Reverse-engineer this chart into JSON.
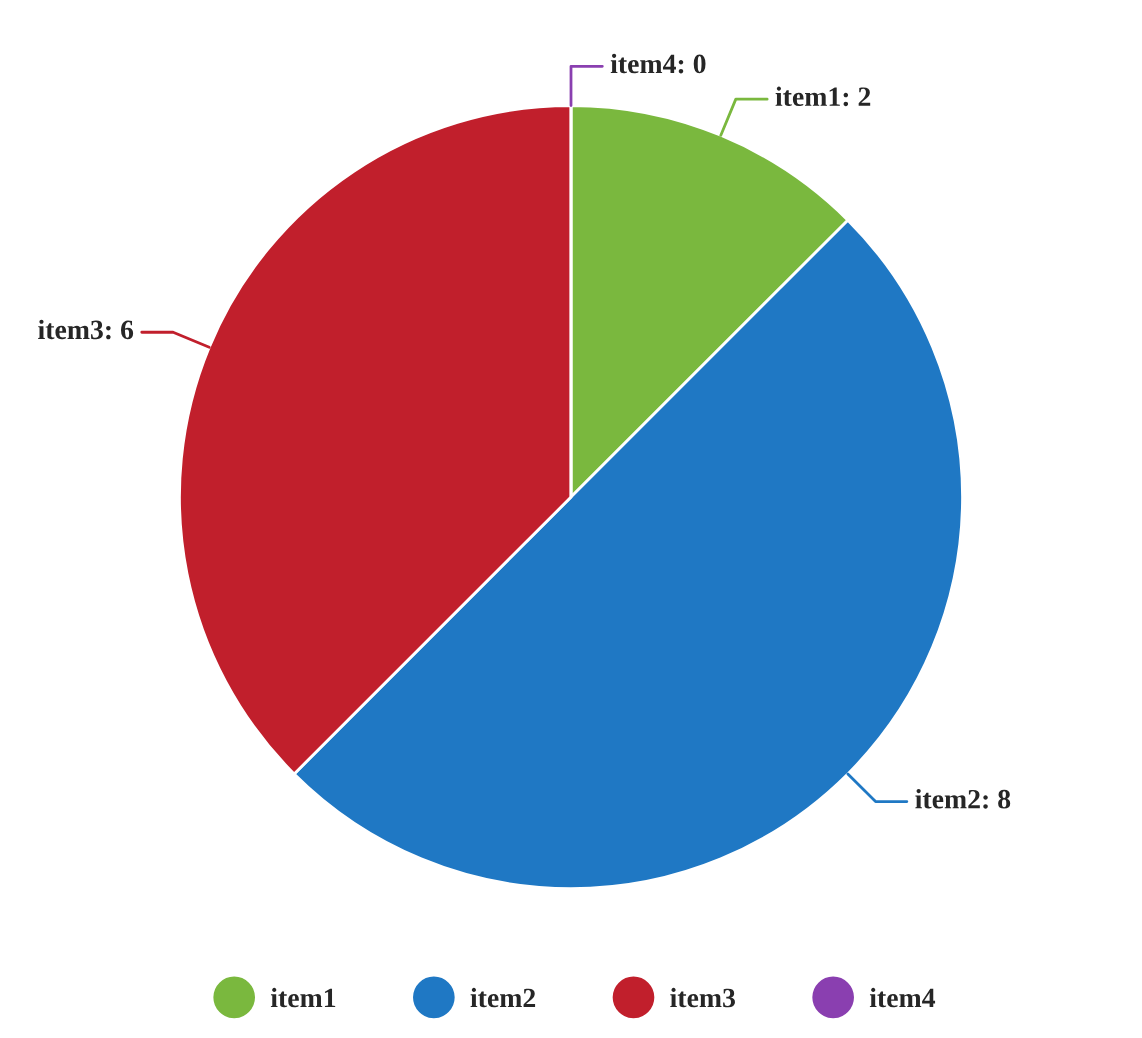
{
  "chart_data": {
    "type": "pie",
    "categories": [
      "item1",
      "item2",
      "item3",
      "item4"
    ],
    "values": [
      2,
      8,
      6,
      0
    ],
    "colors": [
      "#7ab83e",
      "#1f78c4",
      "#c11f2c",
      "#8a3fb0"
    ],
    "value_labels": [
      "item1: 2",
      "item2: 8",
      "item3: 6",
      "item4: 0"
    ],
    "legend": "bottom"
  }
}
